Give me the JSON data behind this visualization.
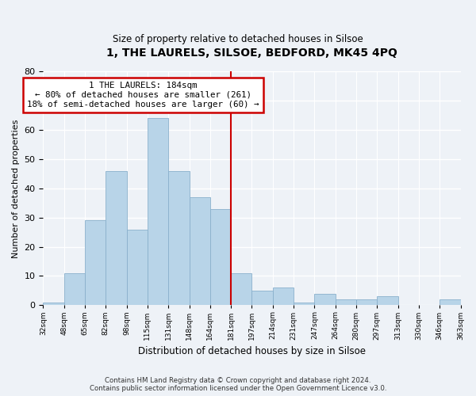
{
  "title": "1, THE LAURELS, SILSOE, BEDFORD, MK45 4PQ",
  "subtitle": "Size of property relative to detached houses in Silsoe",
  "xlabel": "Distribution of detached houses by size in Silsoe",
  "ylabel": "Number of detached properties",
  "footer_line1": "Contains HM Land Registry data © Crown copyright and database right 2024.",
  "footer_line2": "Contains public sector information licensed under the Open Government Licence v3.0.",
  "categories": [
    "32sqm",
    "48sqm",
    "65sqm",
    "82sqm",
    "98sqm",
    "115sqm",
    "131sqm",
    "148sqm",
    "164sqm",
    "181sqm",
    "197sqm",
    "214sqm",
    "231sqm",
    "247sqm",
    "264sqm",
    "280sqm",
    "297sqm",
    "313sqm",
    "330sqm",
    "346sqm",
    "363sqm"
  ],
  "values": [
    1,
    11,
    29,
    46,
    26,
    64,
    46,
    37,
    33,
    11,
    5,
    6,
    1,
    4,
    2,
    2,
    3,
    0,
    0,
    2,
    0
  ],
  "bar_color": "#b8d4e8",
  "vline_x": 9,
  "vline_color": "#cc0000",
  "annotation_title": "1 THE LAURELS: 184sqm",
  "annotation_line1": "← 80% of detached houses are smaller (261)",
  "annotation_line2": "18% of semi-detached houses are larger (60) →",
  "annotation_box_color": "#ffffff",
  "annotation_box_edge": "#cc0000",
  "ylim": [
    0,
    80
  ],
  "yticks": [
    0,
    10,
    20,
    30,
    40,
    50,
    60,
    70,
    80
  ],
  "background_color": "#eef2f7",
  "grid_color": "#ffffff"
}
